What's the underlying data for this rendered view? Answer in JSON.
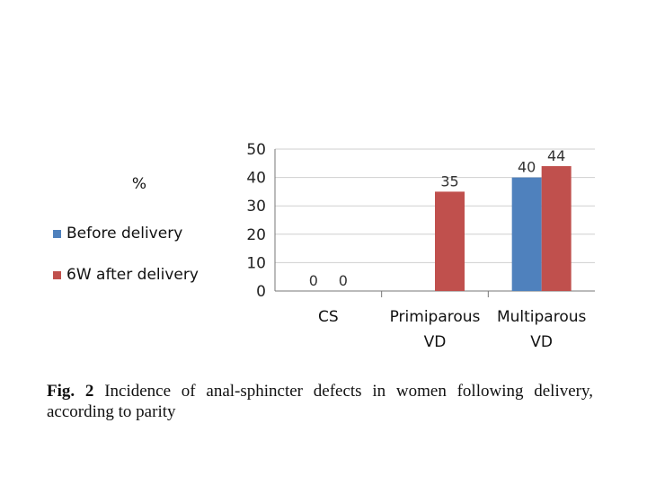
{
  "chart_data": {
    "type": "bar",
    "ylabel": "%",
    "ylim": [
      0,
      50
    ],
    "yticks": [
      0,
      10,
      20,
      30,
      40,
      50
    ],
    "grid": true,
    "legend_position": "left",
    "categories": [
      [
        "CS"
      ],
      [
        "Primiparous",
        "VD"
      ],
      [
        "Multiparous",
        "VD"
      ]
    ],
    "series": [
      {
        "name": "Before delivery",
        "color": "#4f81bd",
        "values": [
          0,
          0,
          40
        ],
        "labels": [
          "0",
          "",
          "40"
        ]
      },
      {
        "name": "6W after delivery",
        "color": "#c0504d",
        "values": [
          0,
          35,
          44
        ],
        "labels": [
          "0",
          "35",
          "44"
        ]
      }
    ]
  },
  "caption": {
    "prefix": "Fig. 2",
    "text": "Incidence of anal-sphincter defects in women following delivery, according to parity"
  }
}
